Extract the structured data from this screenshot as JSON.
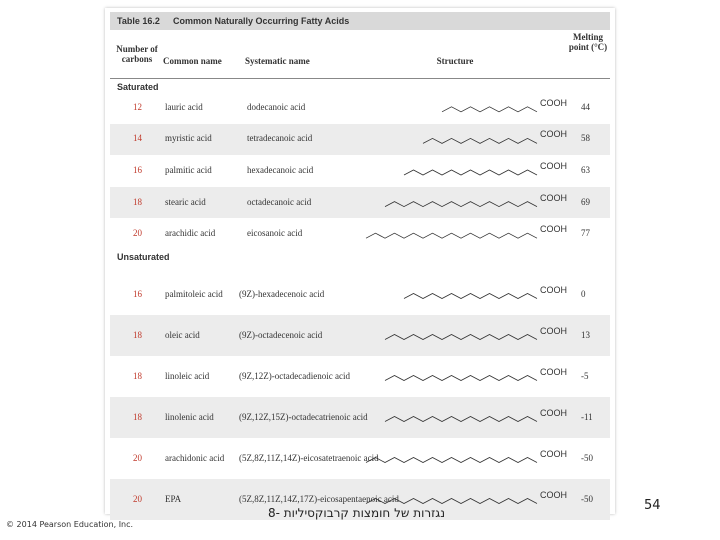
{
  "table": {
    "title": "Table 16.2",
    "caption": "Common Naturally Occurring Fatty Acids",
    "columns": [
      "Number of carbons",
      "Common name",
      "Systematic name",
      "Structure",
      "Melting point (°C)"
    ],
    "sections": [
      {
        "label": "Saturated",
        "rows": [
          {
            "carbons": 12,
            "common": "lauric acid",
            "systematic": "dodecanoic acid",
            "structure": "COOH",
            "melting_point": 44
          },
          {
            "carbons": 14,
            "common": "myristic acid",
            "systematic": "tetradecanoic acid",
            "structure": "COOH",
            "melting_point": 58
          },
          {
            "carbons": 16,
            "common": "palmitic acid",
            "systematic": "hexadecanoic acid",
            "structure": "COOH",
            "melting_point": 63
          },
          {
            "carbons": 18,
            "common": "stearic acid",
            "systematic": "octadecanoic acid",
            "structure": "COOH",
            "melting_point": 69
          },
          {
            "carbons": 20,
            "common": "arachidic acid",
            "systematic": "eicosanoic acid",
            "structure": "COOH",
            "melting_point": 77
          }
        ]
      },
      {
        "label": "Unsaturated",
        "rows": [
          {
            "carbons": 16,
            "common": "palmitoleic acid",
            "systematic": "(9Z)-hexadecenoic acid",
            "structure": "COOH",
            "melting_point": 0
          },
          {
            "carbons": 18,
            "common": "oleic acid",
            "systematic": "(9Z)-octadecenoic acid",
            "structure": "COOH",
            "melting_point": 13
          },
          {
            "carbons": 18,
            "common": "linoleic acid",
            "systematic": "(9Z,12Z)-octadecadienoic acid",
            "structure": "COOH",
            "melting_point": -5
          },
          {
            "carbons": 18,
            "common": "linolenic acid",
            "systematic": "(9Z,12Z,15Z)-octadecatrienoic acid",
            "structure": "COOH",
            "melting_point": -11
          },
          {
            "carbons": 20,
            "common": "arachidonic acid",
            "systematic": "(5Z,8Z,11Z,14Z)-eicosatetraenoic acid",
            "structure": "COOH",
            "melting_point": -50
          },
          {
            "carbons": 20,
            "common": "EPA",
            "systematic": "(5Z,8Z,11Z,14Z,17Z)-eicosapentaenoic acid",
            "structure": "COOH",
            "melting_point": -50
          }
        ]
      }
    ]
  },
  "footer": {
    "copyright": "© 2014 Pearson Education, Inc.",
    "subtitle": "נגזרות של חומצות קרבוקסיליות -8",
    "page": "54"
  }
}
